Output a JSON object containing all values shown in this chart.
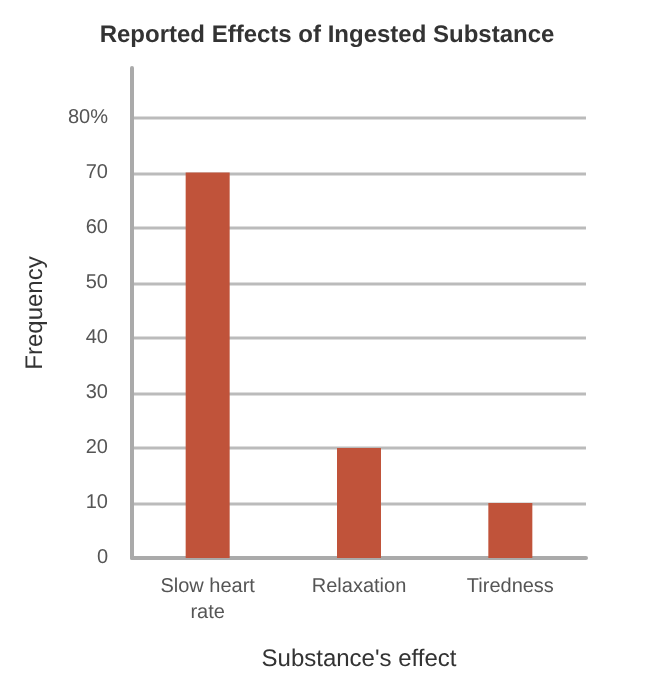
{
  "chart_data": {
    "type": "bar",
    "title": "Reported Effects of Ingested Substance",
    "xlabel": "Substance's effect",
    "ylabel": "Frequency",
    "categories": [
      "Slow heart rate",
      "Relaxation",
      "Tiredness"
    ],
    "values": [
      70,
      20,
      10
    ],
    "color": "#c0533a",
    "ylim": [
      0,
      89
    ],
    "yticks": [
      0,
      10,
      20,
      30,
      40,
      50,
      60,
      70,
      {
        "value": 80,
        "label": "80%"
      }
    ],
    "grid": "y"
  }
}
